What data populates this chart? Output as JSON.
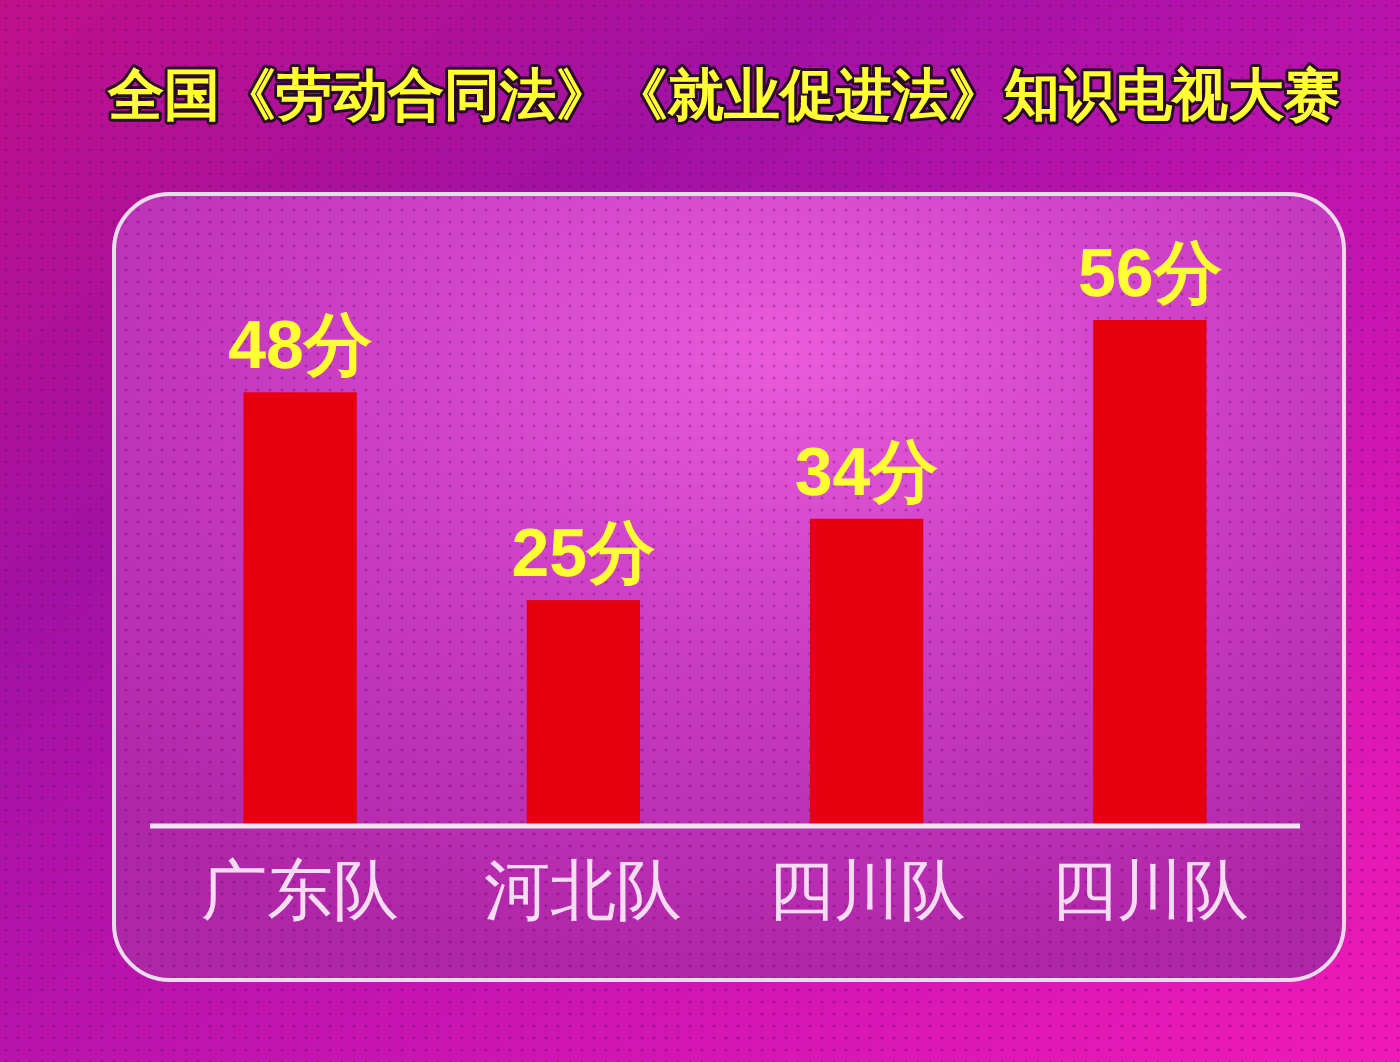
{
  "chart_data": {
    "type": "bar",
    "title": "全国《劳动合同法》《就业促进法》知识电视大赛",
    "categories": [
      "广东队",
      "河北队",
      "四川队",
      "四川队"
    ],
    "values": [
      48,
      25,
      34,
      56
    ],
    "color": "#e6000f",
    "value_labels": [
      "48分",
      "25分",
      "34分",
      "56分"
    ]
  }
}
